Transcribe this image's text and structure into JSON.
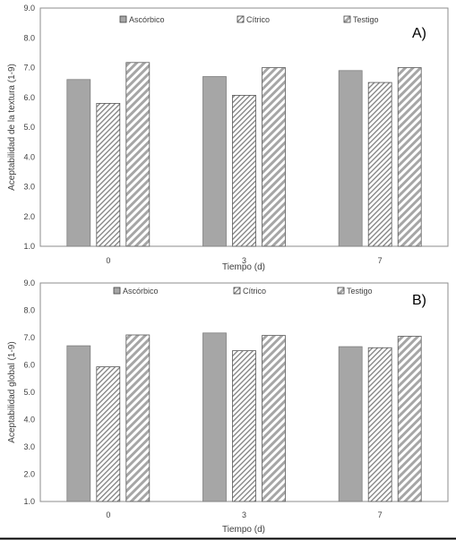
{
  "chart_data": [
    {
      "type": "bar",
      "panel_label": "A)",
      "categories": [
        "0",
        "3",
        "7"
      ],
      "series": [
        {
          "name": "Ascórbico",
          "values": [
            6.6,
            6.7,
            6.9
          ],
          "fill": "solid",
          "color": "#a6a6a6"
        },
        {
          "name": "Cítrico",
          "values": [
            5.8,
            6.07,
            6.5
          ],
          "fill": "hatch-fine",
          "color": "#7f7f7f"
        },
        {
          "name": "Testigo",
          "values": [
            7.17,
            7.0,
            7.0
          ],
          "fill": "hatch-wide",
          "color": "#a6a6a6"
        }
      ],
      "xlabel": "Tiempo (d)",
      "ylabel": "Aceptabilidad de la textura (1-9)",
      "ylim": [
        1.0,
        9.0
      ],
      "yticks": [
        "1.0",
        "2.0",
        "3.0",
        "4.0",
        "5.0",
        "6.0",
        "7.0",
        "8.0",
        "9.0"
      ],
      "grid": false,
      "legend_position": "top"
    },
    {
      "type": "bar",
      "panel_label": "B)",
      "categories": [
        "0",
        "3",
        "7"
      ],
      "series": [
        {
          "name": "Ascórbico",
          "values": [
            6.7,
            7.17,
            6.67
          ],
          "fill": "solid",
          "color": "#a6a6a6"
        },
        {
          "name": "Cítrico",
          "values": [
            5.93,
            6.52,
            6.63
          ],
          "fill": "hatch-fine",
          "color": "#7f7f7f"
        },
        {
          "name": "Testigo",
          "values": [
            7.1,
            7.08,
            7.05
          ],
          "fill": "hatch-wide",
          "color": "#a6a6a6"
        }
      ],
      "xlabel": "Tiempo (d)",
      "ylabel": "Aceptabilidad global (1-9)",
      "ylim": [
        1.0,
        9.0
      ],
      "yticks": [
        "1.0",
        "2.0",
        "3.0",
        "4.0",
        "5.0",
        "6.0",
        "7.0",
        "8.0",
        "9.0"
      ],
      "grid": false,
      "legend_position": "top"
    }
  ]
}
